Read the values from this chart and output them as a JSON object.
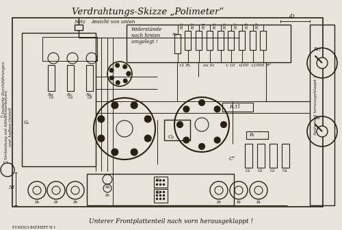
{
  "title": "Verdrahtungs-Skizze „Polimeter“",
  "subtitle_bottom": "Unterer Frontplattenteil nach vorn herausgeklappt !",
  "footer": "FUNKSCI-BAT/HEFT M 1",
  "bg_color": "#e8e4dc",
  "line_color": "#282010",
  "text_color": "#1a1008",
  "fig_width": 5.0,
  "fig_height": 3.36,
  "dpi": 100
}
